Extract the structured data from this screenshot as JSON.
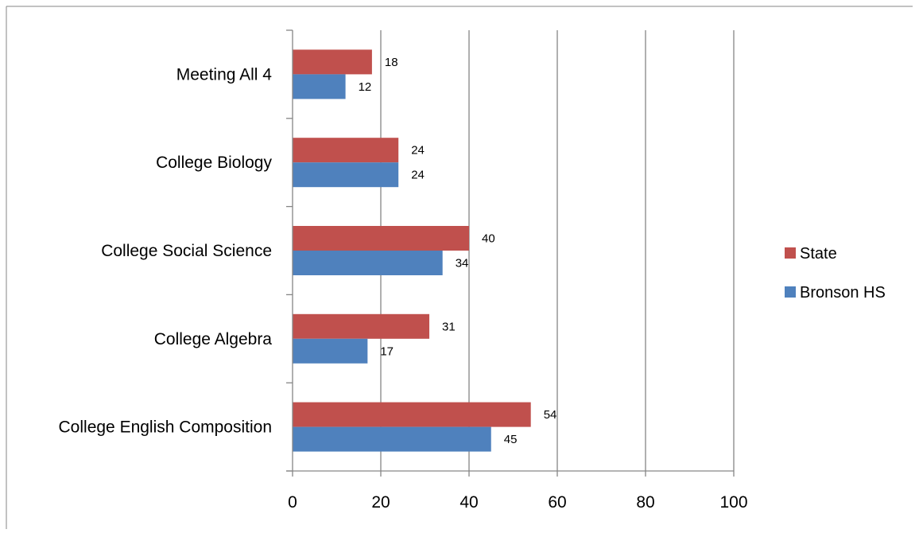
{
  "chart_data": {
    "type": "bar",
    "orientation": "horizontal",
    "categories": [
      "Meeting All 4",
      "College Biology",
      "College Social Science",
      "College Algebra",
      "College English Composition"
    ],
    "series": [
      {
        "name": "State",
        "values": [
          18,
          24,
          40,
          31,
          54
        ],
        "color": "#c0504d"
      },
      {
        "name": "Bronson HS",
        "values": [
          12,
          24,
          34,
          17,
          45
        ],
        "color": "#4f81bd"
      }
    ],
    "xlim": [
      0,
      100
    ],
    "xticks": [
      "0",
      "20",
      "40",
      "60",
      "80",
      "100"
    ],
    "grid": true,
    "legend_position": "right",
    "legend_order": [
      "State",
      "Bronson HS"
    ],
    "title": "",
    "xlabel": "",
    "ylabel": ""
  }
}
